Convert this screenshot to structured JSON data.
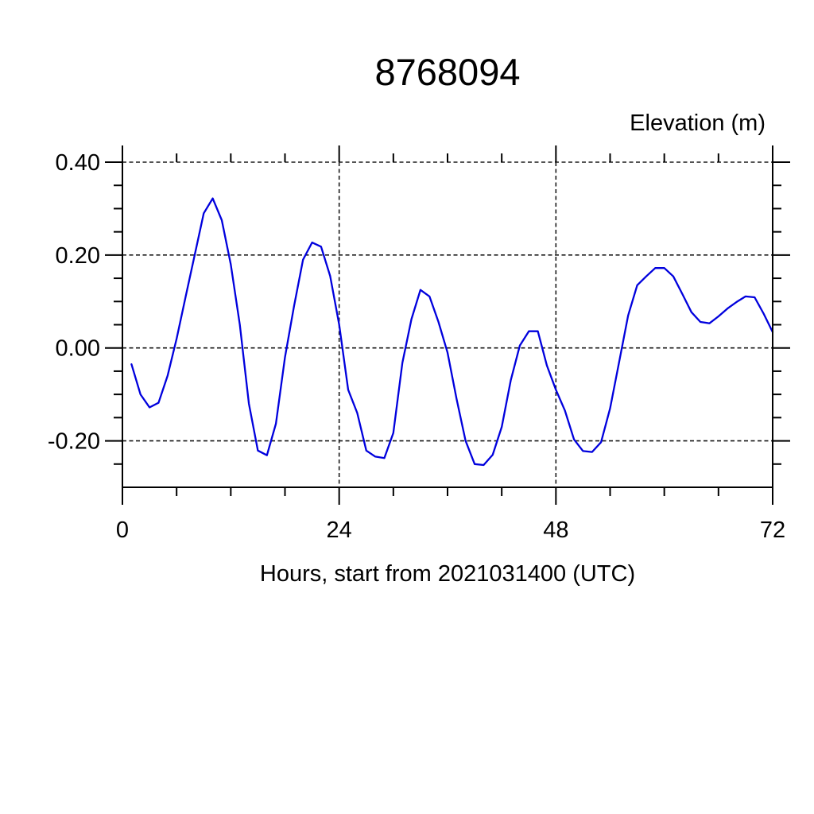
{
  "chart_data": {
    "type": "line",
    "title": "8768094",
    "right_header": "Elevation (m)",
    "xlabel": "Hours, start from 2021031400 (UTC)",
    "ylabel": "",
    "xlim": [
      0,
      72
    ],
    "ylim": [
      -0.3,
      0.4
    ],
    "xticks": [
      0,
      24,
      48,
      72
    ],
    "xtick_labels": [
      "0",
      "24",
      "48",
      "72"
    ],
    "x_minor_interval": 6,
    "yticks": [
      0.4,
      0.2,
      0.0,
      -0.2
    ],
    "ytick_labels": [
      "0.40",
      "0.20",
      "0.00",
      "-0.20"
    ],
    "y_minor_interval": 0.05,
    "grid": true,
    "legend_position": "none",
    "line_color": "#0000dd",
    "series": [
      {
        "name": "elevation",
        "x": [
          1,
          2,
          3,
          4,
          5,
          6,
          7,
          8,
          9,
          10,
          11,
          12,
          13,
          14,
          15,
          16,
          17,
          18,
          19,
          20,
          21,
          22,
          23,
          24,
          25,
          26,
          27,
          28,
          29,
          30,
          31,
          32,
          33,
          34,
          35,
          36,
          37,
          38,
          39,
          40,
          41,
          42,
          43,
          44,
          45,
          46,
          47,
          48,
          49,
          50,
          51,
          52,
          53,
          54,
          55,
          56,
          57,
          58,
          59,
          60,
          61,
          62,
          63,
          64,
          65,
          66,
          67,
          68,
          69,
          70,
          71,
          72
        ],
        "y": [
          -0.035,
          -0.1,
          -0.128,
          -0.118,
          -0.06,
          0.02,
          0.11,
          0.2,
          0.29,
          0.322,
          0.275,
          0.18,
          0.05,
          -0.12,
          -0.221,
          -0.231,
          -0.163,
          -0.02,
          0.09,
          0.19,
          0.227,
          0.218,
          0.155,
          0.05,
          -0.09,
          -0.14,
          -0.221,
          -0.234,
          -0.237,
          -0.183,
          -0.032,
          0.062,
          0.125,
          0.111,
          0.056,
          -0.01,
          -0.11,
          -0.2,
          -0.25,
          -0.252,
          -0.23,
          -0.17,
          -0.07,
          0.005,
          0.036,
          0.036,
          -0.038,
          -0.09,
          -0.135,
          -0.197,
          -0.222,
          -0.224,
          -0.203,
          -0.13,
          -0.03,
          0.07,
          0.135,
          0.154,
          0.172,
          0.172,
          0.154,
          0.116,
          0.077,
          0.056,
          0.053,
          0.068,
          0.085,
          0.099,
          0.111,
          0.109,
          0.074,
          0.034
        ]
      }
    ]
  }
}
